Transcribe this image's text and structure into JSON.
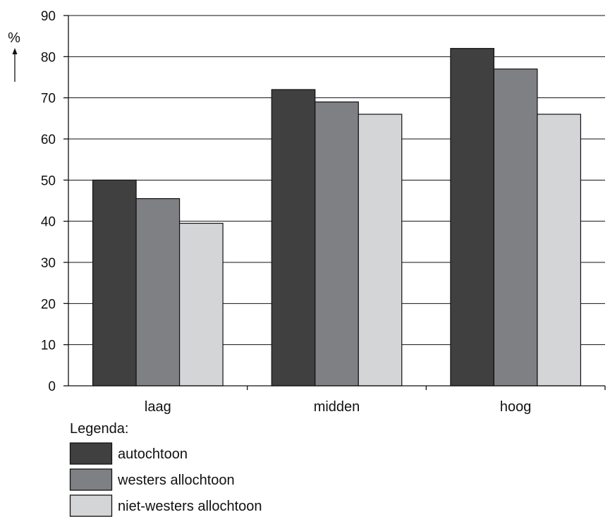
{
  "chart_data": {
    "type": "bar",
    "ylabel": "%",
    "ylim": [
      0,
      90
    ],
    "yticks": [
      "0",
      "10",
      "20",
      "30",
      "40",
      "50",
      "60",
      "70",
      "80",
      "90"
    ],
    "grid": true,
    "categories": [
      "laag",
      "midden",
      "hoog"
    ],
    "series": [
      {
        "name": "autochtoon",
        "color": "#404040",
        "values": [
          50,
          72,
          82
        ]
      },
      {
        "name": "westers allochtoon",
        "color": "#7f8084",
        "values": [
          45.5,
          69,
          77
        ]
      },
      {
        "name": "niet-westers allochtoon",
        "color": "#d4d5d7",
        "values": [
          39.5,
          66,
          66
        ]
      }
    ],
    "legend": {
      "title": "Legenda:",
      "placement": "bottom-left"
    }
  }
}
